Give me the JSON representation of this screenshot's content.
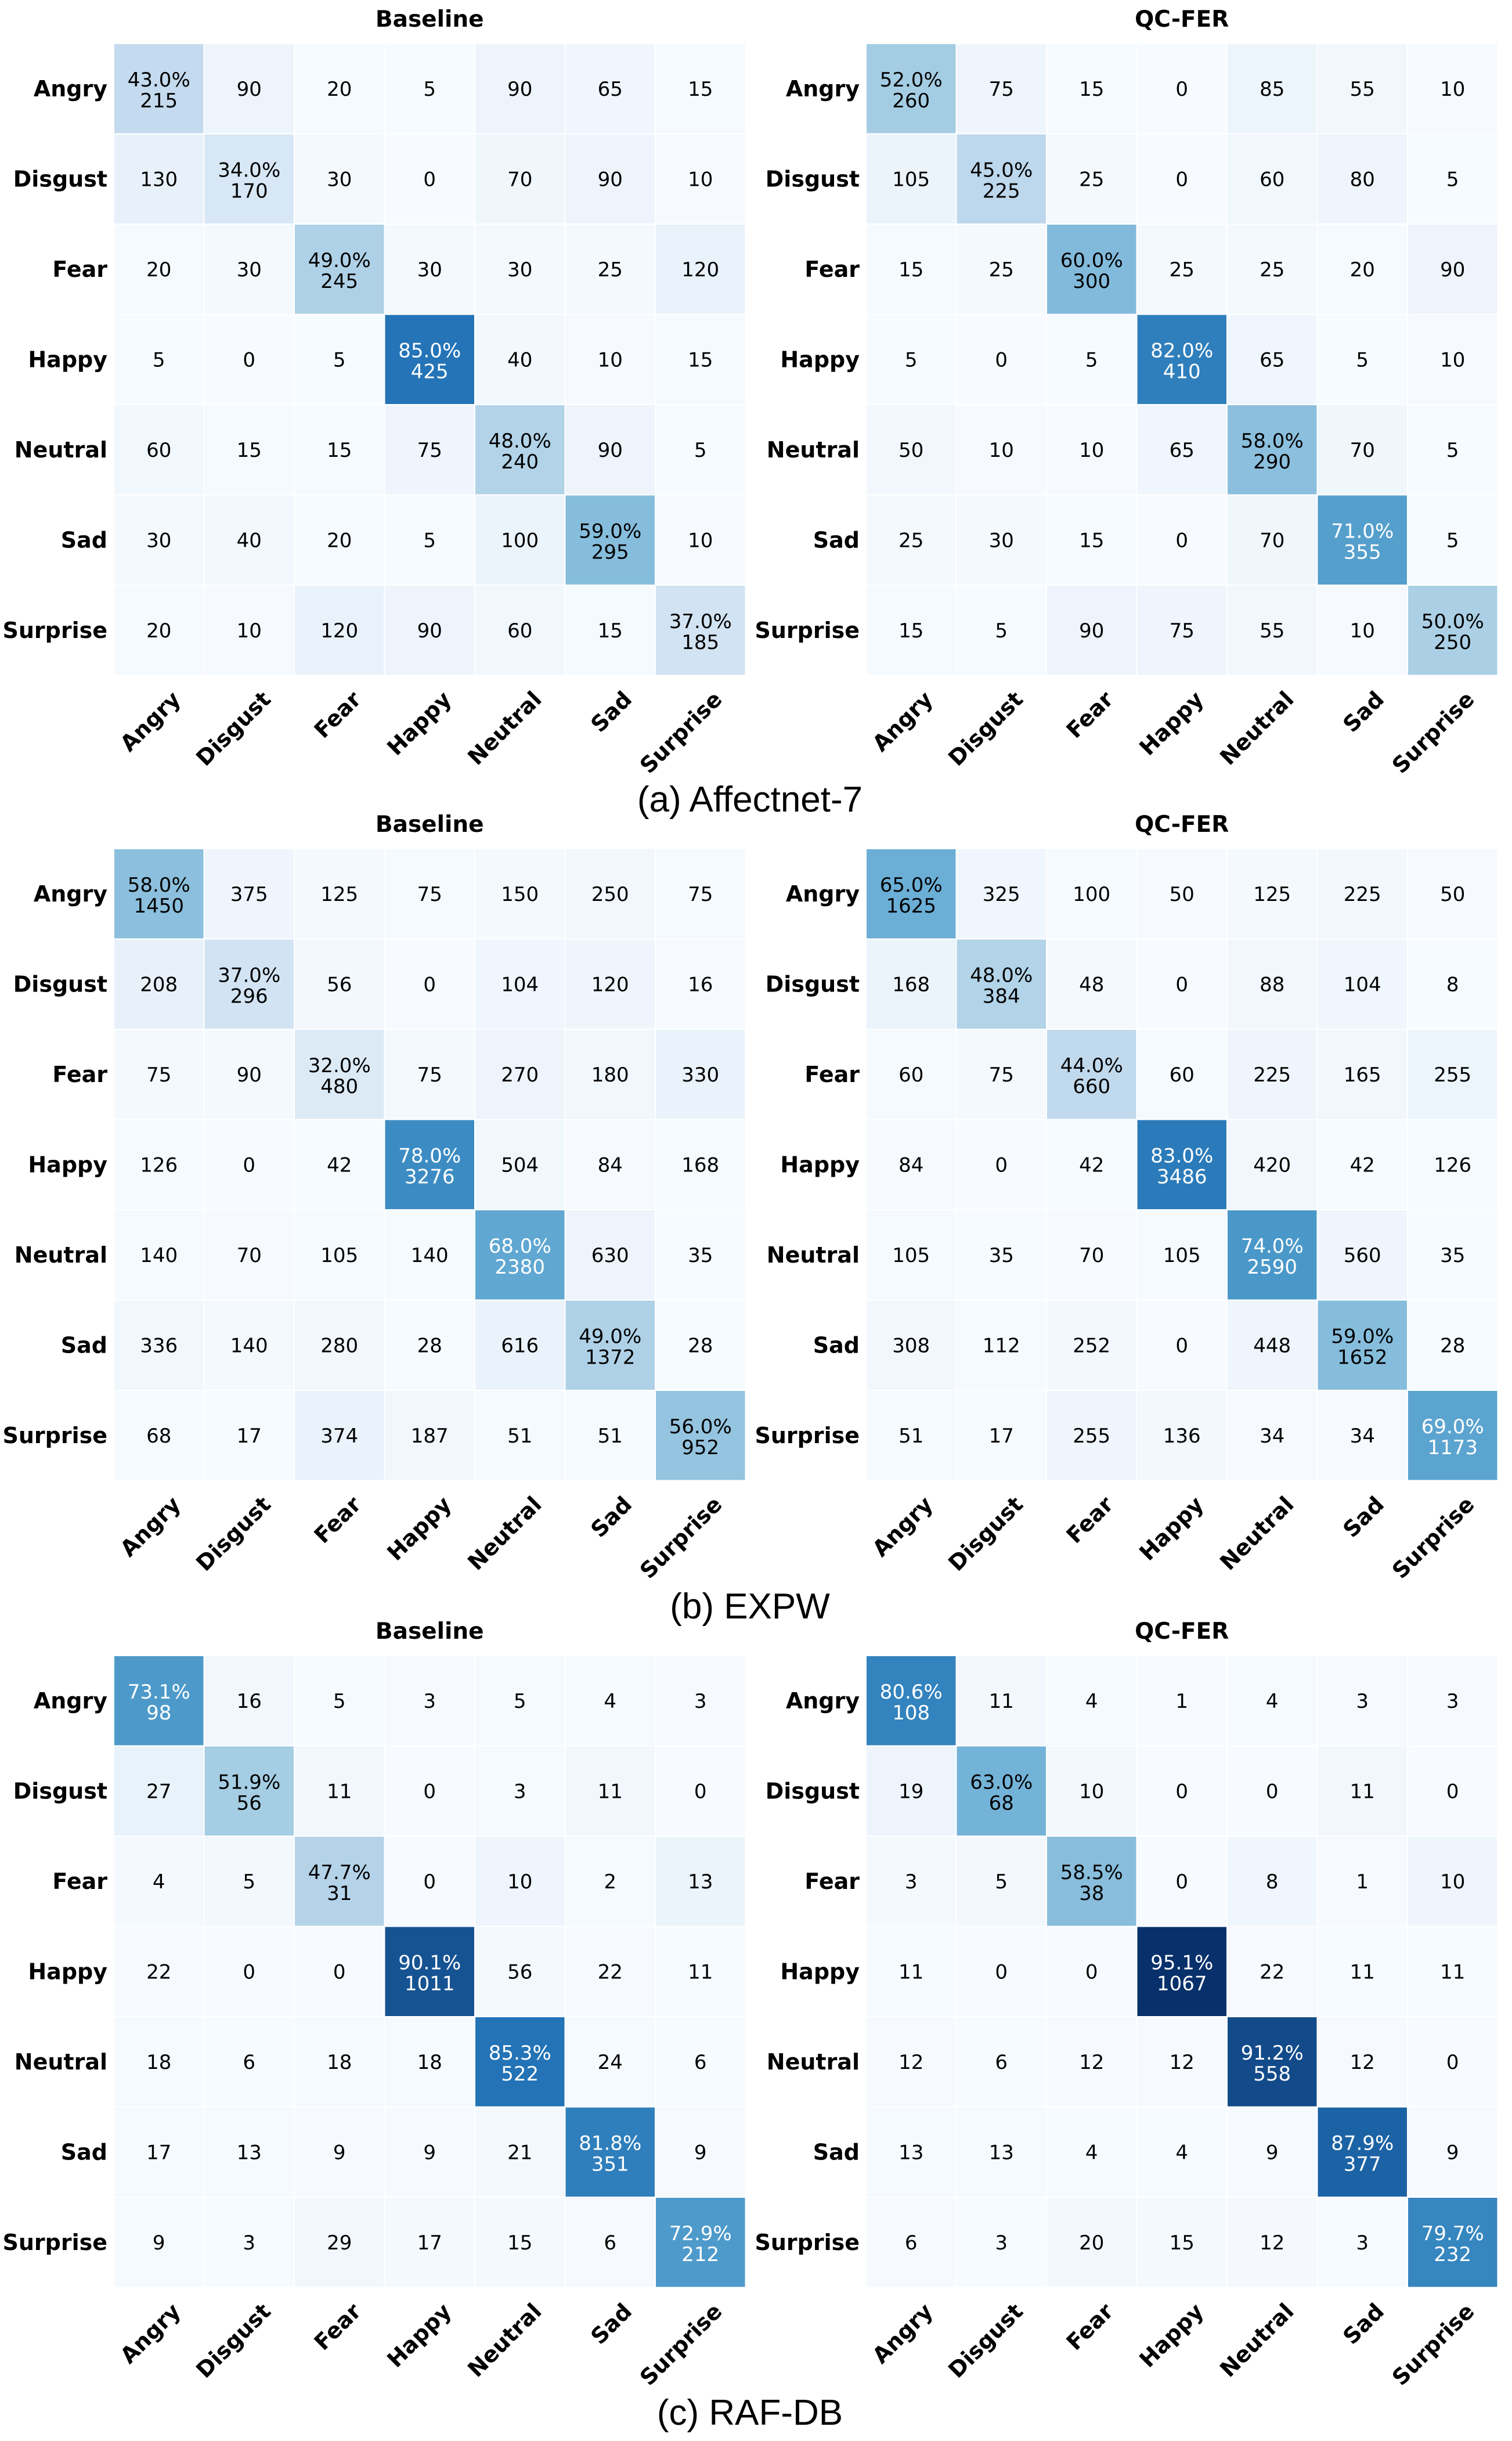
{
  "labels": [
    "Angry",
    "Disgust",
    "Fear",
    "Happy",
    "Neutral",
    "Sad",
    "Surprise"
  ],
  "captions": [
    "(a) Affectnet-7",
    "(b) EXPW",
    "(c) RAF-DB"
  ],
  "colors": {
    "low": "#f7fbff",
    "mid": "#6baed6",
    "high": "#08306b",
    "text_dark": "#000000",
    "text_light": "#ffffff"
  },
  "chart_data": [
    {
      "type": "heatmap",
      "dataset": "(a) Affectnet-7",
      "title": "Baseline",
      "rows": [
        "Angry",
        "Disgust",
        "Fear",
        "Happy",
        "Neutral",
        "Sad",
        "Surprise"
      ],
      "cols": [
        "Angry",
        "Disgust",
        "Fear",
        "Happy",
        "Neutral",
        "Sad",
        "Surprise"
      ],
      "values": [
        [
          215,
          90,
          20,
          5,
          90,
          65,
          15
        ],
        [
          130,
          170,
          30,
          0,
          70,
          90,
          10
        ],
        [
          20,
          30,
          245,
          30,
          30,
          25,
          120
        ],
        [
          5,
          0,
          5,
          425,
          40,
          10,
          15
        ],
        [
          60,
          15,
          15,
          75,
          240,
          90,
          5
        ],
        [
          30,
          40,
          20,
          5,
          100,
          295,
          10
        ],
        [
          20,
          10,
          120,
          90,
          60,
          15,
          185
        ]
      ],
      "diag_pct": [
        "43.0%",
        "34.0%",
        "49.0%",
        "85.0%",
        "48.0%",
        "59.0%",
        "37.0%"
      ]
    },
    {
      "type": "heatmap",
      "dataset": "(a) Affectnet-7",
      "title": "QC-FER",
      "rows": [
        "Angry",
        "Disgust",
        "Fear",
        "Happy",
        "Neutral",
        "Sad",
        "Surprise"
      ],
      "cols": [
        "Angry",
        "Disgust",
        "Fear",
        "Happy",
        "Neutral",
        "Sad",
        "Surprise"
      ],
      "values": [
        [
          260,
          75,
          15,
          0,
          85,
          55,
          10
        ],
        [
          105,
          225,
          25,
          0,
          60,
          80,
          5
        ],
        [
          15,
          25,
          300,
          25,
          25,
          20,
          90
        ],
        [
          5,
          0,
          5,
          410,
          65,
          5,
          10
        ],
        [
          50,
          10,
          10,
          65,
          290,
          70,
          5
        ],
        [
          25,
          30,
          15,
          0,
          70,
          355,
          5
        ],
        [
          15,
          5,
          90,
          75,
          55,
          10,
          250
        ]
      ],
      "diag_pct": [
        "52.0%",
        "45.0%",
        "60.0%",
        "82.0%",
        "58.0%",
        "71.0%",
        "50.0%"
      ]
    },
    {
      "type": "heatmap",
      "dataset": "(b) EXPW",
      "title": "Baseline",
      "rows": [
        "Angry",
        "Disgust",
        "Fear",
        "Happy",
        "Neutral",
        "Sad",
        "Surprise"
      ],
      "cols": [
        "Angry",
        "Disgust",
        "Fear",
        "Happy",
        "Neutral",
        "Sad",
        "Surprise"
      ],
      "values": [
        [
          1450,
          375,
          125,
          75,
          150,
          250,
          75
        ],
        [
          208,
          296,
          56,
          0,
          104,
          120,
          16
        ],
        [
          75,
          90,
          480,
          75,
          270,
          180,
          330
        ],
        [
          126,
          0,
          42,
          3276,
          504,
          84,
          168
        ],
        [
          140,
          70,
          105,
          140,
          2380,
          630,
          35
        ],
        [
          336,
          140,
          280,
          28,
          616,
          1372,
          28
        ],
        [
          68,
          17,
          374,
          187,
          51,
          51,
          952
        ]
      ],
      "diag_pct": [
        "58.0%",
        "37.0%",
        "32.0%",
        "78.0%",
        "68.0%",
        "49.0%",
        "56.0%"
      ]
    },
    {
      "type": "heatmap",
      "dataset": "(b) EXPW",
      "title": "QC-FER",
      "rows": [
        "Angry",
        "Disgust",
        "Fear",
        "Happy",
        "Neutral",
        "Sad",
        "Surprise"
      ],
      "cols": [
        "Angry",
        "Disgust",
        "Fear",
        "Happy",
        "Neutral",
        "Sad",
        "Surprise"
      ],
      "values": [
        [
          1625,
          325,
          100,
          50,
          125,
          225,
          50
        ],
        [
          168,
          384,
          48,
          0,
          88,
          104,
          8
        ],
        [
          60,
          75,
          660,
          60,
          225,
          165,
          255
        ],
        [
          84,
          0,
          42,
          3486,
          420,
          42,
          126
        ],
        [
          105,
          35,
          70,
          105,
          2590,
          560,
          35
        ],
        [
          308,
          112,
          252,
          0,
          448,
          1652,
          28
        ],
        [
          51,
          17,
          255,
          136,
          34,
          34,
          1173
        ]
      ],
      "diag_pct": [
        "65.0%",
        "48.0%",
        "44.0%",
        "83.0%",
        "74.0%",
        "59.0%",
        "69.0%"
      ]
    },
    {
      "type": "heatmap",
      "dataset": "(c) RAF-DB",
      "title": "Baseline",
      "rows": [
        "Angry",
        "Disgust",
        "Fear",
        "Happy",
        "Neutral",
        "Sad",
        "Surprise"
      ],
      "cols": [
        "Angry",
        "Disgust",
        "Fear",
        "Happy",
        "Neutral",
        "Sad",
        "Surprise"
      ],
      "values": [
        [
          98,
          16,
          5,
          3,
          5,
          4,
          3
        ],
        [
          27,
          56,
          11,
          0,
          3,
          11,
          0
        ],
        [
          4,
          5,
          31,
          0,
          10,
          2,
          13
        ],
        [
          22,
          0,
          0,
          1011,
          56,
          22,
          11
        ],
        [
          18,
          6,
          18,
          18,
          522,
          24,
          6
        ],
        [
          17,
          13,
          9,
          9,
          21,
          351,
          9
        ],
        [
          9,
          3,
          29,
          17,
          15,
          6,
          212
        ]
      ],
      "diag_pct": [
        "73.1%",
        "51.9%",
        "47.7%",
        "90.1%",
        "85.3%",
        "81.8%",
        "72.9%"
      ]
    },
    {
      "type": "heatmap",
      "dataset": "(c) RAF-DB",
      "title": "QC-FER",
      "rows": [
        "Angry",
        "Disgust",
        "Fear",
        "Happy",
        "Neutral",
        "Sad",
        "Surprise"
      ],
      "cols": [
        "Angry",
        "Disgust",
        "Fear",
        "Happy",
        "Neutral",
        "Sad",
        "Surprise"
      ],
      "values": [
        [
          108,
          11,
          4,
          1,
          4,
          3,
          3
        ],
        [
          19,
          68,
          10,
          0,
          0,
          11,
          0
        ],
        [
          3,
          5,
          38,
          0,
          8,
          1,
          10
        ],
        [
          11,
          0,
          0,
          1067,
          22,
          11,
          11
        ],
        [
          12,
          6,
          12,
          12,
          558,
          12,
          0
        ],
        [
          13,
          13,
          4,
          4,
          9,
          377,
          9
        ],
        [
          6,
          3,
          20,
          15,
          12,
          3,
          232
        ]
      ],
      "diag_pct": [
        "80.6%",
        "63.0%",
        "58.5%",
        "95.1%",
        "91.2%",
        "87.9%",
        "79.7%"
      ]
    }
  ]
}
